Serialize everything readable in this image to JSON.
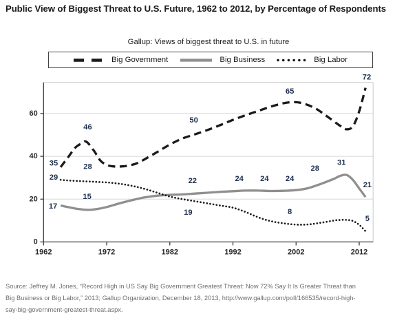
{
  "figure": {
    "title": "Public View of Biggest Threat to U.S. Future, 1962 to 2012, by Percentage of Respondents",
    "subtitle": "Gallup: Views of biggest threat to U.S. in future",
    "source_lines": [
      "Source: Jeffrey M. Jones, “Record High in US Say Big Government Greatest Threat: Now 72% Say It Is Greater Threat than",
      "Big Business or Big Labor,” 2013; Gallup Organization, December 18, 2013, http://www.gallup.com/poll/166535/record-high-",
      "say-big-government-greatest-threat.aspx."
    ]
  },
  "legend": {
    "items": [
      {
        "label": "Big Government",
        "style": "dashed",
        "color": "#1a1a1a"
      },
      {
        "label": "Big Business",
        "style": "solid",
        "color": "#8f8f8f"
      },
      {
        "label": "Big Labor",
        "style": "dotted",
        "color": "#1a1a1a"
      }
    ]
  },
  "colors": {
    "grid": "#d6d6d6",
    "plot_border": "#c9c9c9",
    "axis": "#3d3d3d",
    "data_label": "#1e2f4d",
    "tick_label": "#2b2b2b",
    "source_text": "#6e6e6e"
  },
  "chart_data": {
    "type": "line",
    "title": "Gallup: Views of biggest threat to U.S. in future",
    "xlabel": "",
    "ylabel": "",
    "x_ticks": [
      1962,
      1972,
      1982,
      1992,
      2002,
      2012
    ],
    "y_ticks": [
      0,
      20,
      40,
      60
    ],
    "xlim": [
      1962,
      2014.2
    ],
    "ylim": [
      0,
      74.5
    ],
    "grid": "horizontal",
    "legend_position": "top",
    "series": [
      {
        "name": "Big Government",
        "id": "big-government",
        "style": "dashed",
        "color": "#1a1a1a",
        "points": [
          [
            1964.7,
            35
          ],
          [
            1966,
            40
          ],
          [
            1967,
            44
          ],
          [
            1968,
            46
          ],
          [
            1968.8,
            46.8
          ],
          [
            1970,
            42.5
          ],
          [
            1971,
            38
          ],
          [
            1972,
            36
          ],
          [
            1973,
            35.3
          ],
          [
            1974.5,
            35.3
          ],
          [
            1976,
            36
          ],
          [
            1977,
            37
          ],
          [
            1978,
            38.6
          ],
          [
            1980,
            42
          ],
          [
            1982,
            45.5
          ],
          [
            1984,
            48.3
          ],
          [
            1986,
            50.3
          ],
          [
            1988,
            52.3
          ],
          [
            1990,
            54.6
          ],
          [
            1992,
            57
          ],
          [
            1994,
            59.2
          ],
          [
            1996,
            61.2
          ],
          [
            1998,
            63.2
          ],
          [
            2000,
            64.8
          ],
          [
            2001.5,
            65.3
          ],
          [
            2003,
            64.8
          ],
          [
            2005,
            62.5
          ],
          [
            2007,
            58.5
          ],
          [
            2009,
            54.2
          ],
          [
            2010,
            52.6
          ],
          [
            2011,
            54
          ],
          [
            2012,
            61
          ],
          [
            2013,
            72
          ]
        ],
        "labels": [
          {
            "text": "35",
            "x": 1963.6,
            "y": 36.6
          },
          {
            "text": "46",
            "x": 1969.0,
            "y": 53.6
          },
          {
            "text": "50",
            "x": 1985.8,
            "y": 56.8
          },
          {
            "text": "65",
            "x": 2001.0,
            "y": 70.3
          },
          {
            "text": "72",
            "x": 2013.2,
            "y": 76.8
          }
        ]
      },
      {
        "name": "Big Business",
        "id": "big-business",
        "style": "solid",
        "color": "#8f8f8f",
        "points": [
          [
            1964.7,
            17
          ],
          [
            1966,
            16.2
          ],
          [
            1967.5,
            15.4
          ],
          [
            1969,
            15
          ],
          [
            1970.5,
            15.4
          ],
          [
            1972,
            16.3
          ],
          [
            1974,
            18
          ],
          [
            1976,
            19.5
          ],
          [
            1978,
            20.8
          ],
          [
            1980,
            21.6
          ],
          [
            1982,
            22
          ],
          [
            1984,
            22.2
          ],
          [
            1986,
            22.6
          ],
          [
            1988,
            23
          ],
          [
            1990,
            23.4
          ],
          [
            1992,
            23.7
          ],
          [
            1994,
            24
          ],
          [
            1996,
            24
          ],
          [
            1998,
            23.8
          ],
          [
            2000,
            23.9
          ],
          [
            2002,
            24.2
          ],
          [
            2004,
            25.2
          ],
          [
            2006,
            27.2
          ],
          [
            2008,
            29.5
          ],
          [
            2009,
            30.9
          ],
          [
            2010,
            31.3
          ],
          [
            2011,
            29
          ],
          [
            2012,
            25
          ],
          [
            2013,
            21
          ]
        ],
        "labels": [
          {
            "text": "17",
            "x": 1963.5,
            "y": 16.6
          },
          {
            "text": "15",
            "x": 1968.9,
            "y": 21.0
          },
          {
            "text": "22",
            "x": 1985.6,
            "y": 28.4
          },
          {
            "text": "24",
            "x": 1993.0,
            "y": 29.5
          },
          {
            "text": "24",
            "x": 1997.0,
            "y": 29.5
          },
          {
            "text": "24",
            "x": 2001.0,
            "y": 29.5
          },
          {
            "text": "28",
            "x": 2005.0,
            "y": 34.3
          },
          {
            "text": "31",
            "x": 2009.2,
            "y": 36.9
          },
          {
            "text": "21",
            "x": 2013.3,
            "y": 26.6
          }
        ]
      },
      {
        "name": "Big Labor",
        "id": "big-labor",
        "style": "dotted",
        "color": "#1a1a1a",
        "points": [
          [
            1964.7,
            29
          ],
          [
            1966,
            28.7
          ],
          [
            1968,
            28.4
          ],
          [
            1970,
            28.1
          ],
          [
            1972,
            27.8
          ],
          [
            1974,
            27.2
          ],
          [
            1976,
            26.2
          ],
          [
            1978,
            24.8
          ],
          [
            1980,
            23
          ],
          [
            1982,
            21.2
          ],
          [
            1984,
            20
          ],
          [
            1986,
            19
          ],
          [
            1988,
            18
          ],
          [
            1990,
            17
          ],
          [
            1992,
            16
          ],
          [
            1994,
            14
          ],
          [
            1996,
            11.5
          ],
          [
            1998,
            9.7
          ],
          [
            2000,
            8.7
          ],
          [
            2002,
            8.1
          ],
          [
            2004,
            8.2
          ],
          [
            2006,
            9
          ],
          [
            2008,
            10
          ],
          [
            2009,
            10.3
          ],
          [
            2010,
            10.3
          ],
          [
            2011,
            9.8
          ],
          [
            2012,
            8
          ],
          [
            2013,
            5
          ]
        ],
        "labels": [
          {
            "text": "29",
            "x": 1963.6,
            "y": 30.0
          },
          {
            "text": "28",
            "x": 1969.0,
            "y": 35.0
          },
          {
            "text": "19",
            "x": 1984.9,
            "y": 13.7
          },
          {
            "text": "8",
            "x": 2001.0,
            "y": 14.0
          },
          {
            "text": "5",
            "x": 2013.3,
            "y": 10.8
          }
        ]
      }
    ]
  }
}
